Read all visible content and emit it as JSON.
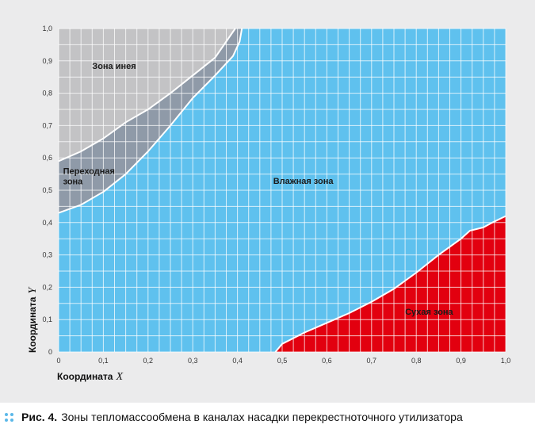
{
  "figure": {
    "caption_label": "Рис. 4.",
    "caption_text": "Зоны тепломассообмена в каналах насадки перекрестноточного утилизатора"
  },
  "colors": {
    "panel": "#ebebec",
    "wet_zone": "#5fc1ee",
    "frost_zone": "#c3c3c5",
    "transition_zone": "#8f9aa8",
    "dry_zone": "#e2000f",
    "grid": "#ffffff",
    "caption_bullet": "#5bb8e8"
  },
  "chart_data": {
    "type": "area",
    "xlabel": "Координата",
    "xlabel_var": "X",
    "ylabel": "Координата",
    "ylabel_var": "Y",
    "xlim": [
      0,
      1.0
    ],
    "ylim": [
      0,
      1.0
    ],
    "grid": true,
    "x_ticks": [
      "0",
      "0,1",
      "0,2",
      "0,3",
      "0,4",
      "0,5",
      "0,6",
      "0,7",
      "0,8",
      "0,9",
      "1,0"
    ],
    "y_ticks": [
      "0",
      "0,1",
      "0,2",
      "0,3",
      "0,4",
      "0,5",
      "0,6",
      "0,7",
      "0,8",
      "0,9",
      "1,0"
    ],
    "zones": [
      {
        "label": "Влажная зона",
        "label_at": {
          "x": 0.48,
          "y": 0.52
        }
      },
      {
        "label": "Зона инея",
        "label_at": {
          "x": 0.075,
          "y": 0.875
        }
      },
      {
        "label": "Переходная\nзона",
        "label_at": {
          "x": 0.01,
          "y": 0.55
        }
      },
      {
        "label": "Сухая зона",
        "label_at": {
          "x": 0.775,
          "y": 0.115
        }
      }
    ],
    "boundaries": {
      "frost_lower": [
        [
          0,
          0.59
        ],
        [
          0.05,
          0.62
        ],
        [
          0.1,
          0.66
        ],
        [
          0.15,
          0.71
        ],
        [
          0.2,
          0.75
        ],
        [
          0.25,
          0.8
        ],
        [
          0.3,
          0.855
        ],
        [
          0.35,
          0.91
        ],
        [
          0.395,
          1.0
        ]
      ],
      "transition_lower": [
        [
          0,
          0.43
        ],
        [
          0.05,
          0.455
        ],
        [
          0.1,
          0.495
        ],
        [
          0.15,
          0.55
        ],
        [
          0.2,
          0.62
        ],
        [
          0.25,
          0.7
        ],
        [
          0.3,
          0.785
        ],
        [
          0.35,
          0.855
        ],
        [
          0.39,
          0.915
        ],
        [
          0.405,
          0.96
        ],
        [
          0.41,
          1.0
        ]
      ],
      "dry_upper": [
        [
          0.485,
          0
        ],
        [
          0.5,
          0.025
        ],
        [
          0.55,
          0.06
        ],
        [
          0.6,
          0.09
        ],
        [
          0.65,
          0.12
        ],
        [
          0.7,
          0.155
        ],
        [
          0.75,
          0.195
        ],
        [
          0.8,
          0.245
        ],
        [
          0.85,
          0.3
        ],
        [
          0.9,
          0.35
        ],
        [
          0.92,
          0.375
        ],
        [
          0.95,
          0.385
        ],
        [
          0.97,
          0.4
        ],
        [
          1.0,
          0.42
        ]
      ]
    }
  }
}
